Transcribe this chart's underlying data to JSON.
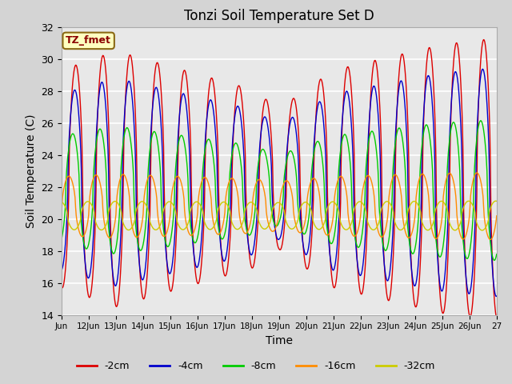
{
  "title": "Tonzi Soil Temperature Set D",
  "xlabel": "Time",
  "ylabel": "Soil Temperature (C)",
  "ylim": [
    14,
    32
  ],
  "xlim": [
    0,
    16
  ],
  "annotation_text": "TZ_fmet",
  "annotation_color": "#8B0000",
  "annotation_bg": "#FFFFC0",
  "annotation_border": "#8B6914",
  "line_colors": {
    "-2cm": "#DD0000",
    "-4cm": "#0000CC",
    "-8cm": "#00CC00",
    "-16cm": "#FF8C00",
    "-32cm": "#CCCC00"
  },
  "legend_labels": [
    "-2cm",
    "-4cm",
    "-8cm",
    "-16cm",
    "-32cm"
  ],
  "fig_bg": "#D4D4D4",
  "plot_bg": "#E8E8E8",
  "x_tick_labels": [
    "Jun",
    "12Jun",
    "13Jun",
    "14Jun",
    "15Jun",
    "16Jun",
    "17Jun",
    "18Jun",
    "19Jun",
    "20Jun",
    "21Jun",
    "22Jun",
    "23Jun",
    "24Jun",
    "25Jun",
    "26Jun",
    "27"
  ],
  "grid_color": "#FFFFFF",
  "title_fontsize": 12
}
